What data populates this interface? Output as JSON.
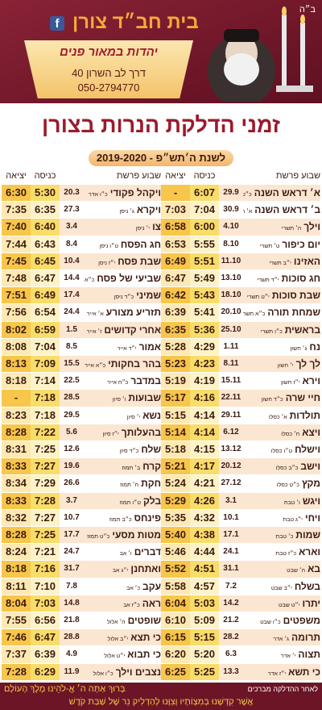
{
  "header": {
    "bh": "ב״ה",
    "org": "בית חב״ד צורן",
    "slogan": "יהדות במאור פנים",
    "address": "דרך לב השרון 40",
    "phone": "050-2794770"
  },
  "title": "זמני הדלקת הנרות בצורן",
  "subtitle": "לשנת ה׳תש״פ - 2019-2020",
  "columns": [
    {
      "headers": {
        "parasha": "שבוע פרשת",
        "in": "כניסה",
        "out": "יציאה"
      },
      "rows": [
        {
          "parasha": "א׳ דראש השנה",
          "hebrew_date": "כ״ט אלול",
          "date": "29.9",
          "in": "6:07",
          "out": "-"
        },
        {
          "parasha": "ב׳ דראש השנה",
          "hebrew_date": "א׳ תשרי",
          "date": "30.9",
          "in": "7:04",
          "out": "7:03"
        },
        {
          "parasha": "וילך",
          "hebrew_date": "ה׳ תשרי",
          "date": "4.10",
          "in": "6:00",
          "out": "6:58"
        },
        {
          "parasha": "יום כיפור",
          "hebrew_date": "ט׳ תשרי",
          "date": "8.10",
          "in": "5:55",
          "out": "6:53"
        },
        {
          "parasha": "האזינו",
          "hebrew_date": "י״ב תשרי",
          "date": "11.10",
          "in": "5:51",
          "out": "6:49"
        },
        {
          "parasha": "חג סוכות",
          "hebrew_date": "י״ד תשרי",
          "date": "13.10",
          "in": "5:49",
          "out": "6:47"
        },
        {
          "parasha": "שבת סוכות",
          "hebrew_date": "י״ט תשרי",
          "date": "18.10",
          "in": "5:43",
          "out": "6:42"
        },
        {
          "parasha": "שמחת תורה",
          "hebrew_date": "כ״א תשרי",
          "date": "20.10",
          "in": "5:41",
          "out": "6:39"
        },
        {
          "parasha": "בראשית",
          "hebrew_date": "כ״ו תשרי",
          "date": "25.10",
          "in": "5:36",
          "out": "6:35"
        },
        {
          "parasha": "נח",
          "hebrew_date": "ג׳ חשון",
          "date": "1.11",
          "in": "4:29",
          "out": "5:28"
        },
        {
          "parasha": "לך לך",
          "hebrew_date": "י׳ חשון",
          "date": "8.11",
          "in": "4:23",
          "out": "5:23"
        },
        {
          "parasha": "וירא",
          "hebrew_date": "י״ז חשון",
          "date": "15.11",
          "in": "4:19",
          "out": "5:19"
        },
        {
          "parasha": "חיי שרה",
          "hebrew_date": "כ״ד חשון",
          "date": "22.11",
          "in": "4:16",
          "out": "5:17"
        },
        {
          "parasha": "תולדות",
          "hebrew_date": "א׳ כסלו",
          "date": "29.11",
          "in": "4:14",
          "out": "5:15"
        },
        {
          "parasha": "ויצא",
          "hebrew_date": "ח׳ כסלו",
          "date": "6.12",
          "in": "4:14",
          "out": "5:14"
        },
        {
          "parasha": "וישלח",
          "hebrew_date": "ט״ו כסלו",
          "date": "13.12",
          "in": "4:15",
          "out": "5:18"
        },
        {
          "parasha": "וישב",
          "hebrew_date": "כ״ב כסלו",
          "date": "20.12",
          "in": "4:17",
          "out": "5:21"
        },
        {
          "parasha": "מקץ",
          "hebrew_date": "כ״ט כסלו",
          "date": "27.12",
          "in": "4:21",
          "out": "5:24"
        },
        {
          "parasha": "ויגש",
          "hebrew_date": "ו׳ טבת",
          "date": "3.1",
          "in": "4:26",
          "out": "5:29"
        },
        {
          "parasha": "ויחי",
          "hebrew_date": "י״ג טבת",
          "date": "10.1",
          "in": "4:32",
          "out": "5:35"
        },
        {
          "parasha": "שמות",
          "hebrew_date": "כ׳ טבת",
          "date": "17.1",
          "in": "4:38",
          "out": "5:40"
        },
        {
          "parasha": "וארא",
          "hebrew_date": "כ״ז טבת",
          "date": "24.1",
          "in": "4:44",
          "out": "5:46"
        },
        {
          "parasha": "בא",
          "hebrew_date": "ה׳ שבט",
          "date": "31.1",
          "in": "4:51",
          "out": "5:52"
        },
        {
          "parasha": "בשלח",
          "hebrew_date": "י״ב שבט",
          "date": "7.2",
          "in": "4:57",
          "out": "5:58"
        },
        {
          "parasha": "יתרו",
          "hebrew_date": "י״ט שבט",
          "date": "14.2",
          "in": "5:03",
          "out": "6:04"
        },
        {
          "parasha": "משפטים",
          "hebrew_date": "כ״ו שבט",
          "date": "21.2",
          "in": "5:09",
          "out": "6:10"
        },
        {
          "parasha": "תרומה",
          "hebrew_date": "ג׳ אדר",
          "date": "28.2",
          "in": "5:15",
          "out": "6:15"
        },
        {
          "parasha": "תצוה",
          "hebrew_date": "י׳ אדר",
          "date": "6.3",
          "in": "5:20",
          "out": "6:20"
        },
        {
          "parasha": "כי תשא",
          "hebrew_date": "י״ז אדר",
          "date": "13.3",
          "in": "5:25",
          "out": "6:25"
        }
      ]
    },
    {
      "headers": {
        "parasha": "שבוע פרשת",
        "in": "כניסה",
        "out": "יציאה"
      },
      "rows": [
        {
          "parasha": "ויקהל פקודי",
          "hebrew_date": "כ״ו אדר",
          "date": "20.3",
          "in": "5:30",
          "out": "6:30"
        },
        {
          "parasha": "ויקרא",
          "hebrew_date": "ג׳ ניסן",
          "date": "27.3",
          "in": "6:35",
          "out": "7:35"
        },
        {
          "parasha": "צו",
          "hebrew_date": "י׳ ניסן",
          "date": "3.4",
          "in": "6:40",
          "out": "7:40"
        },
        {
          "parasha": "חג הפסח",
          "hebrew_date": "ט״ו ניסן",
          "date": "8.4",
          "in": "6:43",
          "out": "7:44"
        },
        {
          "parasha": "שבת פסח",
          "hebrew_date": "י״ז ניסן",
          "date": "10.4",
          "in": "6:45",
          "out": "7:45"
        },
        {
          "parasha": "שביעי של פסח",
          "hebrew_date": "כ״א ניסן",
          "date": "14.4",
          "in": "6:47",
          "out": "7:48"
        },
        {
          "parasha": "שמיני",
          "hebrew_date": "כ״ד ניסן",
          "date": "17.4",
          "in": "6:49",
          "out": "7:51"
        },
        {
          "parasha": "תזריע מצורע",
          "hebrew_date": "א׳ אייר",
          "date": "24.4",
          "in": "6:54",
          "out": "7:56"
        },
        {
          "parasha": "אחרי קדושים",
          "hebrew_date": "ז׳ אייר",
          "date": "1.5",
          "in": "6:59",
          "out": "8:02"
        },
        {
          "parasha": "אמור",
          "hebrew_date": "י״ד אייר",
          "date": "8.5",
          "in": "7:04",
          "out": "8:08"
        },
        {
          "parasha": "בהר בחקותי",
          "hebrew_date": "כ״א אייר",
          "date": "15.5",
          "in": "7:09",
          "out": "8:13"
        },
        {
          "parasha": "במדבר",
          "hebrew_date": "כ״ח אייר",
          "date": "22.5",
          "in": "7:14",
          "out": "8:18"
        },
        {
          "parasha": "שבועות",
          "hebrew_date": "ו׳ סיון",
          "date": "28.5",
          "in": "7:18",
          "out": "-"
        },
        {
          "parasha": "נשא",
          "hebrew_date": "י׳ סיון",
          "date": "29.5",
          "in": "7:18",
          "out": "8:23"
        },
        {
          "parasha": "בהעלותך",
          "hebrew_date": "י״ז סיון",
          "date": "5.6",
          "in": "7:22",
          "out": "8:28"
        },
        {
          "parasha": "שלח",
          "hebrew_date": "כ״ד סיון",
          "date": "12.6",
          "in": "7:25",
          "out": "8:31"
        },
        {
          "parasha": "קרח",
          "hebrew_date": "ב׳ תמוז",
          "date": "19.6",
          "in": "7:27",
          "out": "8:33"
        },
        {
          "parasha": "חקת",
          "hebrew_date": "ח׳ תמוז",
          "date": "26.6",
          "in": "7:29",
          "out": "8:34"
        },
        {
          "parasha": "בלק",
          "hebrew_date": "ט״ו תמוז",
          "date": "3.7",
          "in": "7:28",
          "out": "8:33"
        },
        {
          "parasha": "פינחס",
          "hebrew_date": "כ״ב תמוז",
          "date": "10.7",
          "in": "7:27",
          "out": "8:32"
        },
        {
          "parasha": "מטות מסעי",
          "hebrew_date": "כ״ט תמוז",
          "date": "17.7",
          "in": "7:25",
          "out": "8:28"
        },
        {
          "parasha": "דברים",
          "hebrew_date": "ו׳ אב",
          "date": "24.7",
          "in": "7:21",
          "out": "8:24"
        },
        {
          "parasha": "ואתחנן",
          "hebrew_date": "י״ג אב",
          "date": "31.7",
          "in": "7:16",
          "out": "8:18"
        },
        {
          "parasha": "עקב",
          "hebrew_date": "כ׳ אב",
          "date": "7.8",
          "in": "7:10",
          "out": "8:11"
        },
        {
          "parasha": "ראה",
          "hebrew_date": "כ״ז אב",
          "date": "14.8",
          "in": "7:03",
          "out": "8:04"
        },
        {
          "parasha": "שופטים",
          "hebrew_date": "ה׳ אלול",
          "date": "21.8",
          "in": "6:56",
          "out": "7:55"
        },
        {
          "parasha": "כי תצא",
          "hebrew_date": "י״ב אלול",
          "date": "28.8",
          "in": "6:47",
          "out": "7:46"
        },
        {
          "parasha": "כי תבוא",
          "hebrew_date": "י״ט אלול",
          "date": "4.9",
          "in": "6:39",
          "out": "7:37"
        },
        {
          "parasha": "נצבים וילך",
          "hebrew_date": "כ״ו אלול",
          "date": "11.9",
          "in": "6:29",
          "out": "7:28"
        }
      ]
    }
  ],
  "footer": {
    "intro": "לאחר ההדלקה מברכים",
    "blessing_1": "בָּרוּךְ אַתָּה ה׳ אֱ-לֹהֵינוּ מֶלֶךְ הָעוֹלָם",
    "blessing_2": "אֲשֶׁר קִדְּשָׁנוּ בְּמִצְוֹתָיו וְצִוָּנוּ לְהַדְלִיק נֵר שֶׁל שַׁבַּת קֹדֶשׁ"
  }
}
